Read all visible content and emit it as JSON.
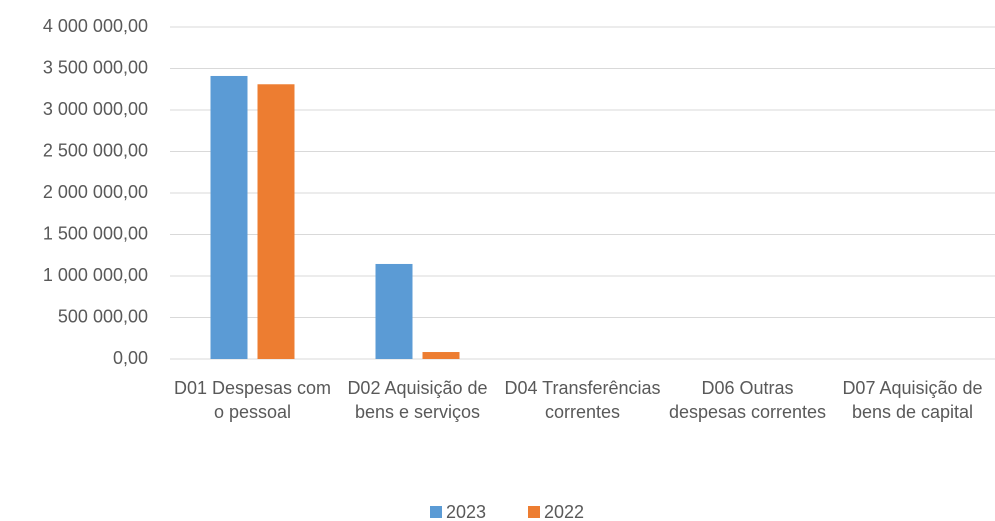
{
  "chart_data": {
    "type": "bar",
    "categories": [
      "D01 Despesas com o pessoal",
      "D02 Aquisição de bens e serviços",
      "D04 Transferências correntes",
      "D06 Outras despesas correntes",
      "D07 Aquisição de bens de capital"
    ],
    "series": [
      {
        "name": "2023",
        "color": "#5b9bd5",
        "values": [
          3410000,
          1145000,
          0,
          0,
          0
        ]
      },
      {
        "name": "2022",
        "color": "#ed7d31",
        "values": [
          3310000,
          84000,
          0,
          0,
          0
        ]
      }
    ],
    "ylim": [
      0,
      4000000
    ],
    "yticks": [
      {
        "value": 0,
        "label": "0,00"
      },
      {
        "value": 500000,
        "label": "500 000,00"
      },
      {
        "value": 1000000,
        "label": "1 000 000,00"
      },
      {
        "value": 1500000,
        "label": "1 500 000,00"
      },
      {
        "value": 2000000,
        "label": "2 000 000,00"
      },
      {
        "value": 2500000,
        "label": "2 500 000,00"
      },
      {
        "value": 3000000,
        "label": "3 000 000,00"
      },
      {
        "value": 3500000,
        "label": "3 500 000,00"
      },
      {
        "value": 4000000,
        "label": "4 000 000,00"
      }
    ],
    "grid": true,
    "legend": "bottom"
  }
}
